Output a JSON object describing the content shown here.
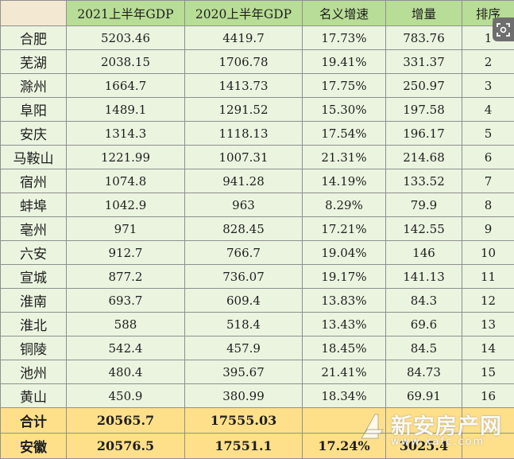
{
  "header": {
    "corner": "",
    "col_gdp_2021": "2021上半年GDP",
    "col_gdp_2020": "2020上半年GDP",
    "col_growth": "名义增速",
    "col_increase": "增量",
    "col_rank": "排序"
  },
  "rows": [
    {
      "city": "合肥",
      "gdp2021": "5203.46",
      "gdp2020": "4419.7",
      "growth": "17.73%",
      "increase": "783.76",
      "rank": "1"
    },
    {
      "city": "芜湖",
      "gdp2021": "2038.15",
      "gdp2020": "1706.78",
      "growth": "19.41%",
      "increase": "331.37",
      "rank": "2"
    },
    {
      "city": "滁州",
      "gdp2021": "1664.7",
      "gdp2020": "1413.73",
      "growth": "17.75%",
      "increase": "250.97",
      "rank": "3"
    },
    {
      "city": "阜阳",
      "gdp2021": "1489.1",
      "gdp2020": "1291.52",
      "growth": "15.30%",
      "increase": "197.58",
      "rank": "4"
    },
    {
      "city": "安庆",
      "gdp2021": "1314.3",
      "gdp2020": "1118.13",
      "growth": "17.54%",
      "increase": "196.17",
      "rank": "5"
    },
    {
      "city": "马鞍山",
      "gdp2021": "1221.99",
      "gdp2020": "1007.31",
      "growth": "21.31%",
      "increase": "214.68",
      "rank": "6"
    },
    {
      "city": "宿州",
      "gdp2021": "1074.8",
      "gdp2020": "941.28",
      "growth": "14.19%",
      "increase": "133.52",
      "rank": "7"
    },
    {
      "city": "蚌埠",
      "gdp2021": "1042.9",
      "gdp2020": "963",
      "growth": "8.29%",
      "increase": "79.9",
      "rank": "8"
    },
    {
      "city": "亳州",
      "gdp2021": "971",
      "gdp2020": "828.45",
      "growth": "17.21%",
      "increase": "142.55",
      "rank": "9"
    },
    {
      "city": "六安",
      "gdp2021": "912.7",
      "gdp2020": "766.7",
      "growth": "19.04%",
      "increase": "146",
      "rank": "10"
    },
    {
      "city": "宣城",
      "gdp2021": "877.2",
      "gdp2020": "736.07",
      "growth": "19.17%",
      "increase": "141.13",
      "rank": "11"
    },
    {
      "city": "淮南",
      "gdp2021": "693.7",
      "gdp2020": "609.4",
      "growth": "13.83%",
      "increase": "84.3",
      "rank": "12"
    },
    {
      "city": "淮北",
      "gdp2021": "588",
      "gdp2020": "518.4",
      "growth": "13.43%",
      "increase": "69.6",
      "rank": "13"
    },
    {
      "city": "铜陵",
      "gdp2021": "542.4",
      "gdp2020": "457.9",
      "growth": "18.45%",
      "increase": "84.5",
      "rank": "14"
    },
    {
      "city": "池州",
      "gdp2021": "480.4",
      "gdp2020": "395.67",
      "growth": "21.41%",
      "increase": "84.73",
      "rank": "15"
    },
    {
      "city": "黄山",
      "gdp2021": "450.9",
      "gdp2020": "380.99",
      "growth": "18.34%",
      "increase": "69.91",
      "rank": "16"
    }
  ],
  "totals": [
    {
      "city": "合计",
      "gdp2021": "20565.7",
      "gdp2020": "17555.03",
      "growth": "",
      "increase": "",
      "rank": ""
    },
    {
      "city": "安徽",
      "gdp2021": "20576.5",
      "gdp2020": "17551.1",
      "growth": "17.24%",
      "increase": "3025.4",
      "rank": ""
    }
  ],
  "watermark": {
    "name": "新安房产网",
    "url": "www.xafc.com",
    "logo_icon": "house-logo-icon"
  },
  "overlay": {
    "icon": "scan-icon"
  },
  "colors": {
    "header_bg": "#b8dd96",
    "body_bg": "#eaf4df",
    "total_bg": "#ffe08a",
    "corner_bg": "#f3e9d2"
  }
}
